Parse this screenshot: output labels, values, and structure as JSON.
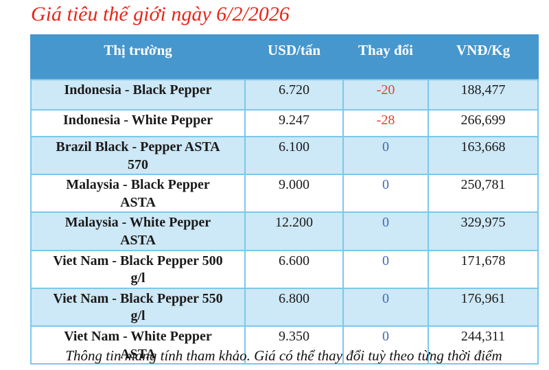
{
  "title": "Giá tiêu thế giới ngày 6/2/2026",
  "table": {
    "columns": [
      "Thị trường",
      "USD/tấn",
      "Thay đổi",
      "VNĐ/Kg"
    ],
    "rows": [
      {
        "market": "Indonesia - Black Pepper",
        "usd": "6.720",
        "change": "-20",
        "vnd": "188,477"
      },
      {
        "market": "Indonesia - White Pepper",
        "usd": "9.247",
        "change": "-28",
        "vnd": "266,699"
      },
      {
        "market": "Brazil Black - Pepper ASTA 570",
        "usd": "6.100",
        "change": "0",
        "vnd": "163,668"
      },
      {
        "market": "Malaysia - Black Pepper ASTA",
        "usd": "9.000",
        "change": "0",
        "vnd": "250,781"
      },
      {
        "market": "Malaysia - White Pepper ASTA",
        "usd": "12.200",
        "change": "0",
        "vnd": "329,975"
      },
      {
        "market": "Viet Nam - Black Pepper 500 g/l",
        "usd": "6.600",
        "change": "0",
        "vnd": "171,678"
      },
      {
        "market": "Viet Nam - Black Pepper 550 g/l",
        "usd": "6.800",
        "change": "0",
        "vnd": "176,961"
      },
      {
        "market": "Viet Nam - White Pepper ASTA",
        "usd": "9.350",
        "change": "0",
        "vnd": "244,311"
      }
    ]
  },
  "footer": "Thông tin mang tính tham khảo. Giá có thể thay đổi tuỳ theo từng thời điểm",
  "colors": {
    "title": "#e8251a",
    "header_bg": "#4697cd",
    "header_text": "#ffffff",
    "row_alt_bg": "#cde8f6",
    "row_bg": "#ffffff",
    "border": "#7cc7eb",
    "negative": "#e8402f",
    "zero": "#4169b8"
  },
  "chart_data": {
    "type": "table",
    "title": "Giá tiêu thế giới ngày 6/2/2026",
    "columns": [
      "Thị trường",
      "USD/tấn",
      "Thay đổi",
      "VNĐ/Kg"
    ],
    "rows": [
      [
        "Indonesia - Black Pepper",
        "6.720",
        "-20",
        "188,477"
      ],
      [
        "Indonesia - White Pepper",
        "9.247",
        "-28",
        "266,699"
      ],
      [
        "Brazil Black - Pepper ASTA 570",
        "6.100",
        "0",
        "163,668"
      ],
      [
        "Malaysia - Black Pepper ASTA",
        "9.000",
        "0",
        "250,781"
      ],
      [
        "Malaysia - White Pepper ASTA",
        "12.200",
        "0",
        "329,975"
      ],
      [
        "Viet Nam - Black Pepper 500 g/l",
        "6.600",
        "0",
        "171,678"
      ],
      [
        "Viet Nam - Black Pepper 550 g/l",
        "6.800",
        "0",
        "176,961"
      ],
      [
        "Viet Nam - White Pepper ASTA",
        "9.350",
        "0",
        "244,311"
      ]
    ],
    "notes": "Negative changes shown in red, zero changes in blue. USD values use dot thousands separator, VND values use comma.",
    "annotation": "Thông tin mang tính tham khảo. Giá có thể thay đổi tuỳ theo từng thời điểm"
  }
}
